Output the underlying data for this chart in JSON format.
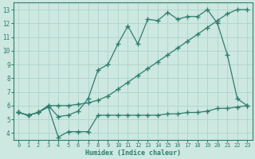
{
  "line1_x": [
    0,
    1,
    2,
    3,
    4,
    5,
    6,
    7,
    8,
    9,
    10,
    11,
    12,
    13,
    14,
    15,
    16,
    17,
    18,
    19,
    20,
    21,
    22,
    23
  ],
  "line1_y": [
    5.5,
    5.3,
    5.5,
    6.0,
    6.0,
    6.0,
    6.1,
    6.2,
    6.4,
    6.7,
    7.2,
    7.7,
    8.2,
    8.7,
    9.2,
    9.7,
    10.2,
    10.7,
    11.2,
    11.7,
    12.2,
    12.7,
    13.0,
    13.0
  ],
  "line2_x": [
    0,
    1,
    2,
    3,
    4,
    5,
    6,
    7,
    8,
    9,
    10,
    11,
    12,
    13,
    14,
    15,
    16,
    17,
    18,
    19,
    20,
    21,
    22,
    23
  ],
  "line2_y": [
    5.5,
    5.3,
    5.5,
    6.0,
    5.2,
    5.3,
    5.6,
    6.5,
    8.6,
    9.0,
    10.5,
    11.8,
    10.5,
    12.3,
    12.2,
    12.8,
    12.3,
    12.5,
    12.5,
    13.0,
    12.0,
    9.7,
    6.5,
    6.0
  ],
  "line3_x": [
    0,
    1,
    2,
    3,
    4,
    5,
    6,
    7,
    8,
    9,
    10,
    11,
    12,
    13,
    14,
    15,
    16,
    17,
    18,
    19,
    20,
    21,
    22,
    23
  ],
  "line3_y": [
    5.5,
    5.3,
    5.5,
    5.9,
    3.7,
    4.1,
    4.1,
    4.1,
    5.3,
    5.3,
    5.3,
    5.3,
    5.3,
    5.3,
    5.3,
    5.4,
    5.4,
    5.5,
    5.5,
    5.6,
    5.8,
    5.8,
    5.9,
    6.0
  ],
  "line_color": "#2e7d6e",
  "bg_color": "#cce8e0",
  "grid_color": "#aacfc8",
  "xlabel": "Humidex (Indice chaleur)",
  "xlim": [
    -0.5,
    23.5
  ],
  "ylim": [
    3.5,
    13.5
  ],
  "xticks": [
    0,
    1,
    2,
    3,
    4,
    5,
    6,
    7,
    8,
    9,
    10,
    11,
    12,
    13,
    14,
    15,
    16,
    17,
    18,
    19,
    20,
    21,
    22,
    23
  ],
  "yticks": [
    4,
    5,
    6,
    7,
    8,
    9,
    10,
    11,
    12,
    13
  ],
  "marker": "+",
  "markersize": 4,
  "linewidth": 0.9,
  "tick_fontsize_x": 5.0,
  "tick_fontsize_y": 5.5,
  "xlabel_fontsize": 6.0
}
